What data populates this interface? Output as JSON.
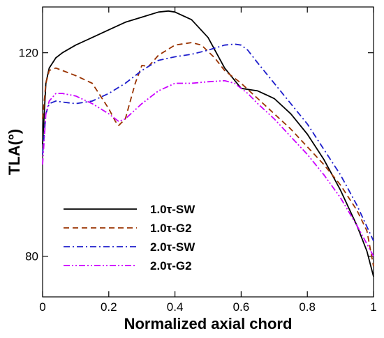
{
  "chart_data": {
    "type": "line",
    "xlabel": "Normalized axial chord",
    "ylabel": "TLA(°)",
    "xlim": [
      0,
      1
    ],
    "ylim": [
      72,
      129
    ],
    "xticks": [
      {
        "value": 0,
        "label": "0"
      },
      {
        "value": 0.2,
        "label": "0.2"
      },
      {
        "value": 0.4,
        "label": "0.4"
      },
      {
        "value": 0.6,
        "label": "0.6"
      },
      {
        "value": 0.8,
        "label": "0.8"
      },
      {
        "value": 1.0,
        "label": "1"
      }
    ],
    "yticks": [
      {
        "value": 80,
        "label": "80"
      },
      {
        "value": 120,
        "label": "120"
      }
    ],
    "grid": false,
    "legend_position": "bottom-left",
    "series": [
      {
        "name": "1.0τ-SW",
        "color": "#000000",
        "dash": "solid",
        "x": [
          0,
          0.01,
          0.02,
          0.04,
          0.06,
          0.1,
          0.15,
          0.2,
          0.25,
          0.3,
          0.35,
          0.38,
          0.4,
          0.45,
          0.5,
          0.55,
          0.6,
          0.65,
          0.7,
          0.75,
          0.8,
          0.85,
          0.9,
          0.95,
          0.98,
          1.0
        ],
        "y": [
          102,
          114,
          117,
          119,
          120,
          121.5,
          123,
          124.5,
          126,
          127,
          128,
          128.2,
          128,
          126.5,
          123,
          117,
          113,
          112.5,
          111,
          108,
          104,
          99,
          93,
          86,
          81,
          76
        ]
      },
      {
        "name": "1.0τ-G2",
        "color": "#993300",
        "dash": "dash",
        "x": [
          0,
          0.01,
          0.02,
          0.04,
          0.06,
          0.1,
          0.15,
          0.18,
          0.2,
          0.22,
          0.23,
          0.25,
          0.28,
          0.3,
          0.32,
          0.35,
          0.4,
          0.45,
          0.48,
          0.52,
          0.55,
          0.6,
          0.65,
          0.7,
          0.75,
          0.8,
          0.85,
          0.9,
          0.95,
          0.98,
          1.0
        ],
        "y": [
          107,
          114,
          116.5,
          117,
          116.5,
          115.5,
          114,
          111,
          109,
          106.5,
          105.7,
          107,
          114,
          117.5,
          117.3,
          119.5,
          121.5,
          122,
          121.5,
          119,
          116.5,
          114,
          111,
          108,
          105,
          101.5,
          98,
          94,
          89,
          85,
          78
        ]
      },
      {
        "name": "2.0τ-SW",
        "color": "#1e1ecc",
        "dash": "dashdot",
        "x": [
          0,
          0.01,
          0.02,
          0.04,
          0.06,
          0.1,
          0.15,
          0.2,
          0.25,
          0.3,
          0.35,
          0.4,
          0.45,
          0.5,
          0.55,
          0.58,
          0.6,
          0.62,
          0.65,
          0.7,
          0.75,
          0.8,
          0.85,
          0.9,
          0.95,
          1.0
        ],
        "y": [
          100,
          108,
          110,
          110.5,
          110.3,
          110,
          110.5,
          112,
          114,
          116.5,
          118.5,
          119.2,
          119.7,
          120.5,
          121.5,
          121.7,
          121.5,
          120.5,
          118,
          114,
          110,
          106,
          101,
          96,
          90,
          83
        ]
      },
      {
        "name": "2.0τ-G2",
        "color": "#cc00ff",
        "dash": "dashdotdot",
        "x": [
          0,
          0.01,
          0.02,
          0.04,
          0.06,
          0.1,
          0.15,
          0.2,
          0.23,
          0.25,
          0.3,
          0.35,
          0.4,
          0.45,
          0.5,
          0.55,
          0.58,
          0.62,
          0.65,
          0.7,
          0.75,
          0.8,
          0.85,
          0.9,
          0.95,
          1.0
        ],
        "y": [
          98,
          108,
          110.5,
          112,
          112,
          111.5,
          110,
          108,
          106.5,
          107,
          110,
          112.5,
          114,
          114,
          114.3,
          114.5,
          114,
          112,
          110,
          107,
          103.5,
          100,
          96,
          91.5,
          86,
          80
        ]
      }
    ]
  }
}
